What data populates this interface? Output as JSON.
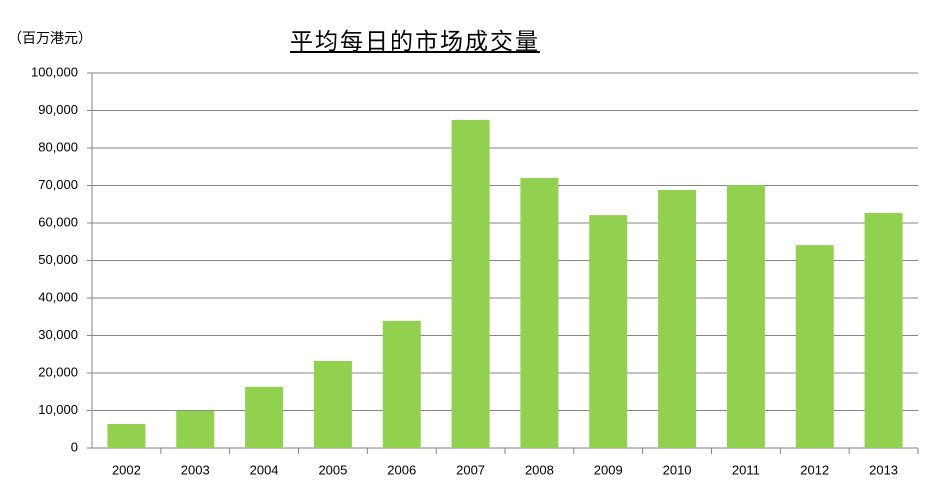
{
  "chart_data": {
    "type": "bar",
    "title": "平均每日的市场成交量",
    "y_unit": "（百万港元）",
    "categories": [
      "2002",
      "2003",
      "2004",
      "2005",
      "2006",
      "2007",
      "2008",
      "2009",
      "2010",
      "2011",
      "2012",
      "2013"
    ],
    "values": [
      6400,
      9900,
      16300,
      23200,
      33900,
      87500,
      72000,
      62100,
      68800,
      70100,
      54100,
      62700
    ],
    "color": "#92d050",
    "ylim": [
      0,
      100000
    ],
    "yticks": [
      0,
      {
        "value": 10000,
        "label": "10,000"
      },
      {
        "value": 20000,
        "label": "20,000"
      },
      {
        "value": 30000,
        "label": "30,000"
      },
      {
        "value": 40000,
        "label": "40,000"
      },
      {
        "value": 50000,
        "label": "50,000"
      },
      {
        "value": 60000,
        "label": "60,000"
      },
      {
        "value": 70000,
        "label": "70,000"
      },
      {
        "value": 80000,
        "label": "80,000"
      },
      {
        "value": 90000,
        "label": "90,000"
      },
      {
        "value": 100000,
        "label": "100,000"
      }
    ],
    "grid": true
  }
}
